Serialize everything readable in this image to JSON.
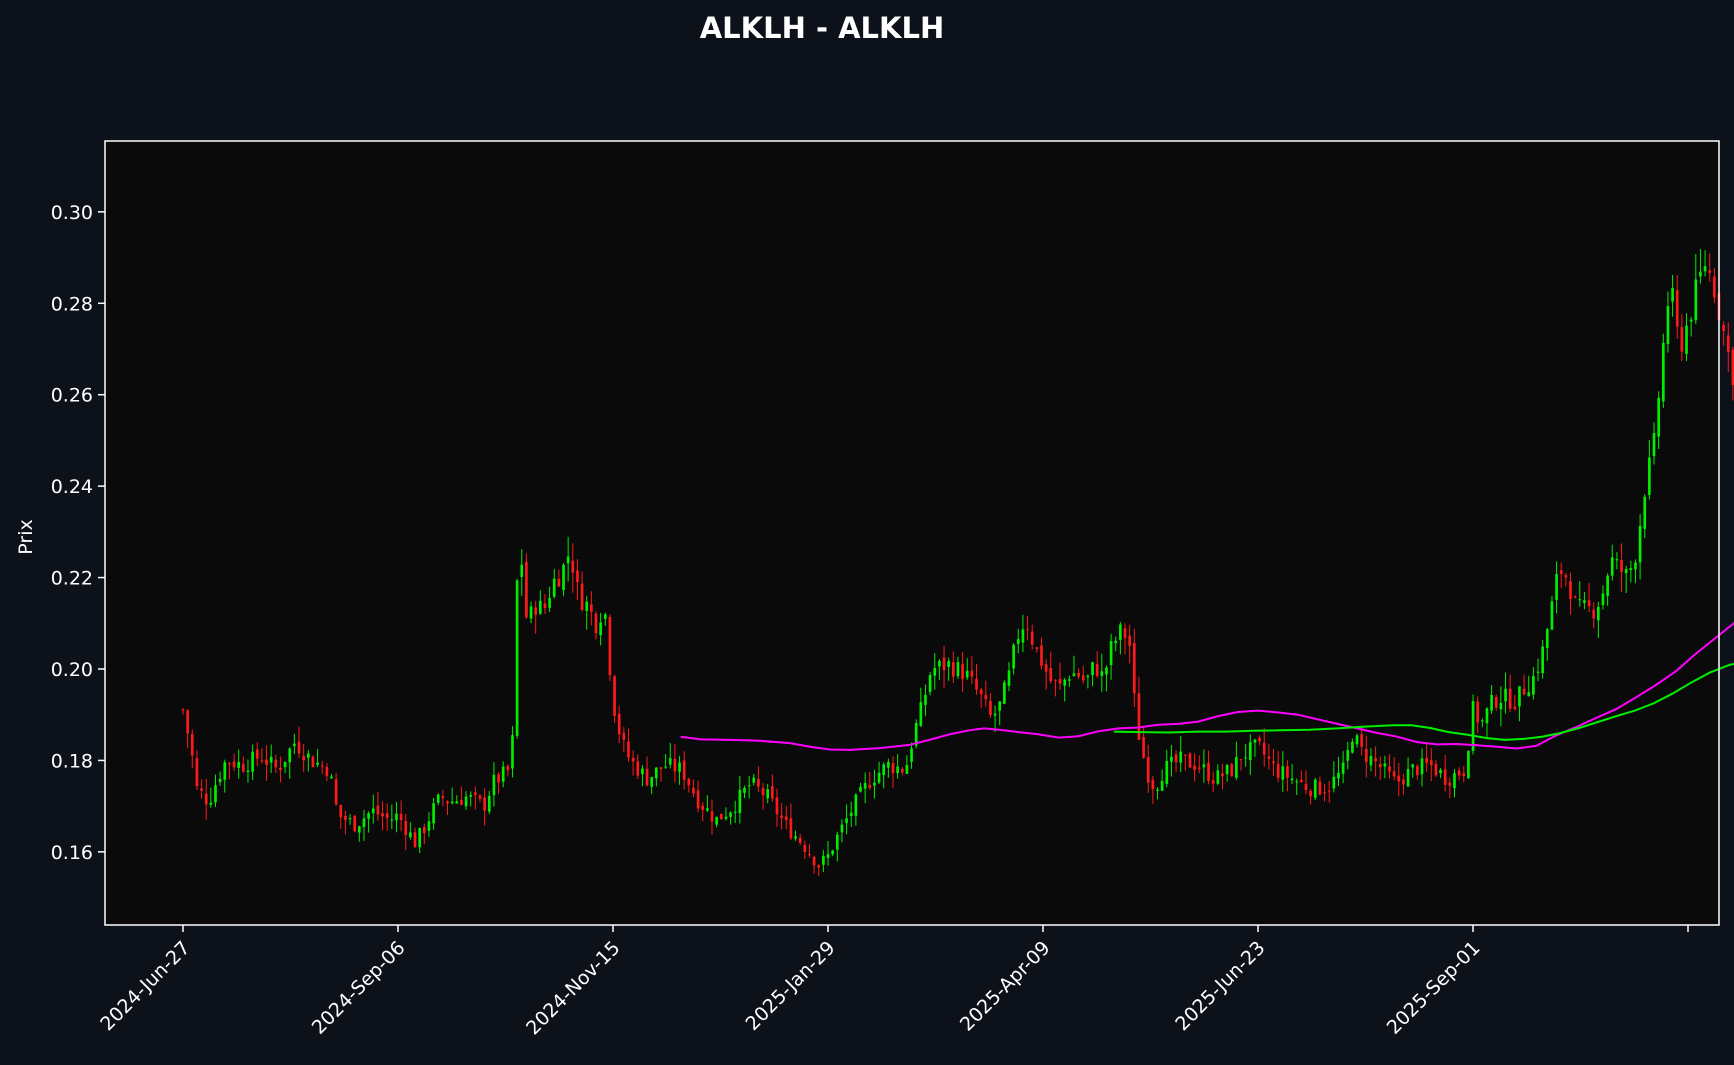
{
  "chart_data": {
    "type": "candlestick",
    "title": "ALKLH - ALKLH",
    "xlabel": "",
    "ylabel": "Prix",
    "ylim": [
      0.144,
      0.3155
    ],
    "yticks": [
      0.16,
      0.18,
      0.2,
      0.22,
      0.24,
      0.26,
      0.28,
      0.3
    ],
    "ytick_labels": [
      "0.16",
      "0.18",
      "0.20",
      "0.22",
      "0.24",
      "0.26",
      "0.28",
      "0.30"
    ],
    "x_tick_labels": [
      "2024-Jun-27",
      "2024-Sep-06",
      "2024-Nov-15",
      "2025-Jan-29",
      "2025-Apr-09",
      "2025-Jun-23",
      "2025-Sep-01",
      ""
    ],
    "x_tick_sessions": [
      0,
      50,
      100,
      150,
      200,
      250,
      300,
      350
    ],
    "session_count": 342,
    "grid": false,
    "legend": "none",
    "colors": {
      "background": "#0d111a",
      "plot_bg": "#0a0a0a",
      "axes": "#ffffff",
      "text": "#ffffff",
      "up": "#00ee00",
      "down": "#ff1a1a",
      "ma_short": "#ff00ff",
      "ma_long": "#00ee00"
    },
    "price_path": [
      [
        0,
        0.191
      ],
      [
        2,
        0.182
      ],
      [
        3,
        0.174
      ],
      [
        6,
        0.171
      ],
      [
        8,
        0.176
      ],
      [
        10,
        0.18
      ],
      [
        14,
        0.179
      ],
      [
        18,
        0.181
      ],
      [
        22,
        0.178
      ],
      [
        26,
        0.184
      ],
      [
        30,
        0.18
      ],
      [
        34,
        0.178
      ],
      [
        36,
        0.168
      ],
      [
        40,
        0.166
      ],
      [
        44,
        0.169
      ],
      [
        48,
        0.167
      ],
      [
        50,
        0.168
      ],
      [
        54,
        0.162
      ],
      [
        56,
        0.165
      ],
      [
        58,
        0.169
      ],
      [
        60,
        0.172
      ],
      [
        62,
        0.171
      ],
      [
        66,
        0.172
      ],
      [
        70,
        0.17
      ],
      [
        72,
        0.175
      ],
      [
        76,
        0.178
      ],
      [
        77,
        0.188
      ],
      [
        78,
        0.232
      ],
      [
        80,
        0.21
      ],
      [
        82,
        0.214
      ],
      [
        84,
        0.213
      ],
      [
        86,
        0.219
      ],
      [
        88,
        0.221
      ],
      [
        90,
        0.226
      ],
      [
        92,
        0.216
      ],
      [
        94,
        0.214
      ],
      [
        96,
        0.21
      ],
      [
        98,
        0.214
      ],
      [
        100,
        0.193
      ],
      [
        102,
        0.184
      ],
      [
        104,
        0.18
      ],
      [
        108,
        0.176
      ],
      [
        112,
        0.179
      ],
      [
        116,
        0.178
      ],
      [
        120,
        0.171
      ],
      [
        124,
        0.167
      ],
      [
        128,
        0.17
      ],
      [
        132,
        0.175
      ],
      [
        136,
        0.172
      ],
      [
        140,
        0.166
      ],
      [
        144,
        0.162
      ],
      [
        148,
        0.157
      ],
      [
        150,
        0.159
      ],
      [
        152,
        0.163
      ],
      [
        156,
        0.17
      ],
      [
        160,
        0.176
      ],
      [
        164,
        0.179
      ],
      [
        168,
        0.178
      ],
      [
        170,
        0.186
      ],
      [
        172,
        0.192
      ],
      [
        174,
        0.2
      ],
      [
        178,
        0.201
      ],
      [
        182,
        0.199
      ],
      [
        186,
        0.193
      ],
      [
        188,
        0.189
      ],
      [
        190,
        0.192
      ],
      [
        192,
        0.198
      ],
      [
        194,
        0.207
      ],
      [
        196,
        0.211
      ],
      [
        198,
        0.205
      ],
      [
        200,
        0.201
      ],
      [
        202,
        0.197
      ],
      [
        204,
        0.196
      ],
      [
        206,
        0.199
      ],
      [
        208,
        0.199
      ],
      [
        210,
        0.197
      ],
      [
        212,
        0.201
      ],
      [
        214,
        0.198
      ],
      [
        216,
        0.205
      ],
      [
        218,
        0.208
      ],
      [
        220,
        0.207
      ],
      [
        221,
        0.195
      ],
      [
        222,
        0.187
      ],
      [
        224,
        0.178
      ],
      [
        226,
        0.174
      ],
      [
        228,
        0.178
      ],
      [
        232,
        0.18
      ],
      [
        236,
        0.179
      ],
      [
        240,
        0.176
      ],
      [
        244,
        0.178
      ],
      [
        246,
        0.181
      ],
      [
        250,
        0.183
      ],
      [
        254,
        0.178
      ],
      [
        258,
        0.176
      ],
      [
        262,
        0.174
      ],
      [
        266,
        0.174
      ],
      [
        270,
        0.178
      ],
      [
        272,
        0.186
      ],
      [
        274,
        0.182
      ],
      [
        278,
        0.179
      ],
      [
        282,
        0.175
      ],
      [
        286,
        0.178
      ],
      [
        290,
        0.179
      ],
      [
        294,
        0.176
      ],
      [
        298,
        0.178
      ],
      [
        300,
        0.191
      ],
      [
        302,
        0.188
      ],
      [
        304,
        0.192
      ],
      [
        306,
        0.194
      ],
      [
        310,
        0.193
      ],
      [
        312,
        0.196
      ],
      [
        314,
        0.198
      ],
      [
        316,
        0.203
      ],
      [
        318,
        0.212
      ],
      [
        320,
        0.222
      ],
      [
        322,
        0.22
      ],
      [
        324,
        0.213
      ],
      [
        328,
        0.213
      ],
      [
        330,
        0.216
      ],
      [
        332,
        0.224
      ],
      [
        336,
        0.22
      ],
      [
        338,
        0.226
      ],
      [
        340,
        0.24
      ],
      [
        342,
        0.248
      ],
      [
        344,
        0.268
      ],
      [
        345,
        0.279
      ],
      [
        346,
        0.283
      ],
      [
        348,
        0.27
      ],
      [
        350,
        0.276
      ],
      [
        352,
        0.283
      ],
      [
        354,
        0.289
      ],
      [
        356,
        0.284
      ],
      [
        358,
        0.275
      ],
      [
        360,
        0.266
      ],
      [
        362,
        0.26
      ],
      [
        364,
        0.256
      ],
      [
        366,
        0.26
      ],
      [
        368,
        0.264
      ]
    ],
    "ma_short": [
      [
        100,
        0.1852
      ],
      [
        104,
        0.1846
      ],
      [
        110,
        0.1845
      ],
      [
        116,
        0.1843
      ],
      [
        122,
        0.1838
      ],
      [
        126,
        0.183
      ],
      [
        130,
        0.1824
      ],
      [
        134,
        0.1823
      ],
      [
        140,
        0.1827
      ],
      [
        146,
        0.1834
      ],
      [
        150,
        0.1845
      ],
      [
        154,
        0.1857
      ],
      [
        158,
        0.1866
      ],
      [
        161,
        0.187
      ],
      [
        164,
        0.1867
      ],
      [
        168,
        0.1862
      ],
      [
        172,
        0.1857
      ],
      [
        176,
        0.185
      ],
      [
        180,
        0.1853
      ],
      [
        184,
        0.1864
      ],
      [
        188,
        0.187
      ],
      [
        192,
        0.1872
      ],
      [
        196,
        0.1878
      ],
      [
        200,
        0.188
      ],
      [
        204,
        0.1885
      ],
      [
        208,
        0.1897
      ],
      [
        212,
        0.1906
      ],
      [
        216,
        0.1909
      ],
      [
        220,
        0.1905
      ],
      [
        224,
        0.19
      ],
      [
        228,
        0.189
      ],
      [
        232,
        0.188
      ],
      [
        236,
        0.187
      ],
      [
        240,
        0.186
      ],
      [
        244,
        0.1852
      ],
      [
        248,
        0.184
      ],
      [
        252,
        0.1835
      ],
      [
        256,
        0.1836
      ],
      [
        260,
        0.1833
      ],
      [
        264,
        0.183
      ],
      [
        268,
        0.1826
      ],
      [
        272,
        0.1832
      ],
      [
        276,
        0.1855
      ],
      [
        280,
        0.1873
      ],
      [
        284,
        0.1893
      ],
      [
        288,
        0.1912
      ],
      [
        292,
        0.1938
      ],
      [
        296,
        0.1965
      ],
      [
        300,
        0.1995
      ],
      [
        304,
        0.2033
      ],
      [
        308,
        0.2068
      ],
      [
        312,
        0.2103
      ],
      [
        316,
        0.2131
      ],
      [
        318,
        0.214
      ]
    ],
    "ma_long": [
      [
        200,
        0.1863
      ],
      [
        206,
        0.1862
      ],
      [
        212,
        0.1861
      ],
      [
        218,
        0.1863
      ],
      [
        224,
        0.1863
      ],
      [
        230,
        0.1865
      ],
      [
        236,
        0.1866
      ],
      [
        242,
        0.1867
      ],
      [
        248,
        0.187
      ],
      [
        254,
        0.1874
      ],
      [
        260,
        0.1877
      ],
      [
        264,
        0.1877
      ],
      [
        268,
        0.1871
      ],
      [
        272,
        0.1862
      ],
      [
        276,
        0.1856
      ],
      [
        280,
        0.1849
      ],
      [
        284,
        0.1845
      ],
      [
        288,
        0.1847
      ],
      [
        292,
        0.1852
      ],
      [
        296,
        0.186
      ],
      [
        300,
        0.1871
      ],
      [
        304,
        0.1884
      ],
      [
        308,
        0.1897
      ],
      [
        312,
        0.1909
      ],
      [
        316,
        0.1925
      ],
      [
        320,
        0.1946
      ],
      [
        324,
        0.197
      ],
      [
        328,
        0.1992
      ],
      [
        332,
        0.2008
      ],
      [
        336,
        0.2018
      ],
      [
        340,
        0.2023
      ]
    ]
  }
}
